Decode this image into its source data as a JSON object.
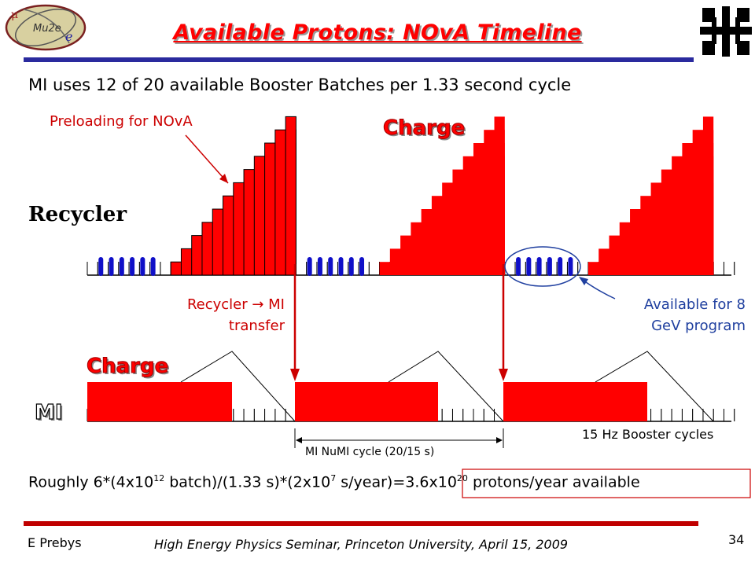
{
  "slide": {
    "title": "Available Protons: NOvA Timeline",
    "subtitle": "MI uses 12 of 20 available Booster Batches per 1.33 second cycle",
    "page_number": "34"
  },
  "logos": {
    "mu2e_logo": {
      "name": "mu2e-logo",
      "text": "Mu2e",
      "mu": "μ",
      "e": "e"
    },
    "fermilab_logo": {
      "name": "fermilab-logo"
    }
  },
  "labels": {
    "preloading": "Preloading for NOvA",
    "recycler": "Recycler",
    "charge_recycler": "Charge",
    "charge_mi": "Charge",
    "mi": "MI",
    "recycler_transfer_line1": "Recycler → MI",
    "recycler_transfer_line2": "transfer",
    "available_line1": "Available for 8",
    "available_line2": "GeV program",
    "booster_cycles": "15 Hz Booster cycles",
    "numi_cycle": "MI NuMI cycle (20/15 s)"
  },
  "formula": {
    "p1": "Roughly 6*(4x10",
    "e1": "12",
    "p2": " batch)/(1.33 s)*(2x10",
    "e2": "7",
    "p3": " s/year)=",
    "p4": "3.6x10",
    "e3": "20",
    "p5": " protons/year available"
  },
  "footer": {
    "author": "E Prebys",
    "seminar": "High Energy Physics Seminar, Princeton University, April 15, 2009"
  },
  "colors": {
    "accent_red": "#ff0000",
    "dark_red": "#cc0000",
    "blue_pulse": "#1010c8",
    "title_rule": "#2a2a9e"
  }
}
